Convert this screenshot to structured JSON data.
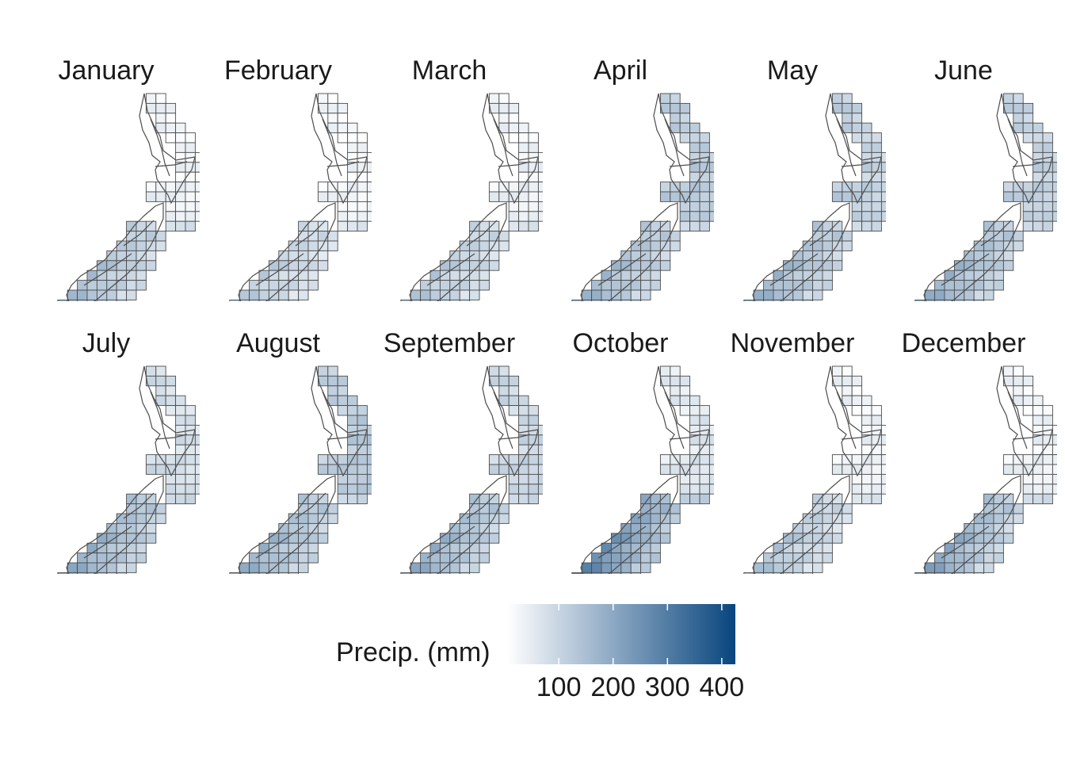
{
  "panels": [
    {
      "month": "January",
      "wet": {
        "west": 0.45,
        "north": 0.1,
        "east": 0.06,
        "south": 0.22
      }
    },
    {
      "month": "February",
      "wet": {
        "west": 0.35,
        "north": 0.08,
        "east": 0.06,
        "south": 0.18
      }
    },
    {
      "month": "March",
      "wet": {
        "west": 0.38,
        "north": 0.1,
        "east": 0.08,
        "south": 0.2
      }
    },
    {
      "month": "April",
      "wet": {
        "west": 0.48,
        "north": 0.3,
        "east": 0.28,
        "south": 0.25
      }
    },
    {
      "month": "May",
      "wet": {
        "west": 0.5,
        "north": 0.3,
        "east": 0.2,
        "south": 0.25
      }
    },
    {
      "month": "June",
      "wet": {
        "west": 0.52,
        "north": 0.28,
        "east": 0.25,
        "south": 0.26
      }
    },
    {
      "month": "July",
      "wet": {
        "west": 0.55,
        "north": 0.22,
        "east": 0.14,
        "south": 0.26
      }
    },
    {
      "month": "August",
      "wet": {
        "west": 0.52,
        "north": 0.28,
        "east": 0.34,
        "south": 0.26
      }
    },
    {
      "month": "September",
      "wet": {
        "west": 0.55,
        "north": 0.24,
        "east": 0.24,
        "south": 0.26
      }
    },
    {
      "month": "October",
      "wet": {
        "west": 0.78,
        "north": 0.14,
        "east": 0.18,
        "south": 0.32
      }
    },
    {
      "month": "November",
      "wet": {
        "west": 0.42,
        "north": 0.1,
        "east": 0.08,
        "south": 0.2
      }
    },
    {
      "month": "December",
      "wet": {
        "west": 0.62,
        "north": 0.1,
        "east": 0.08,
        "south": 0.24
      }
    }
  ],
  "legend": {
    "title": "Precip. (mm)",
    "min": 5,
    "max": 425,
    "ticks": [
      {
        "value": 100,
        "label": "100"
      },
      {
        "value": 200,
        "label": "200"
      },
      {
        "value": 300,
        "label": "300"
      },
      {
        "value": 400,
        "label": "400"
      }
    ],
    "color_low": "#ffffff",
    "color_high": "#08457e"
  },
  "colors": {
    "grid_line": "#4d4d4d",
    "coast_line": "#4d4d4d",
    "text": "#1a1a1a"
  }
}
